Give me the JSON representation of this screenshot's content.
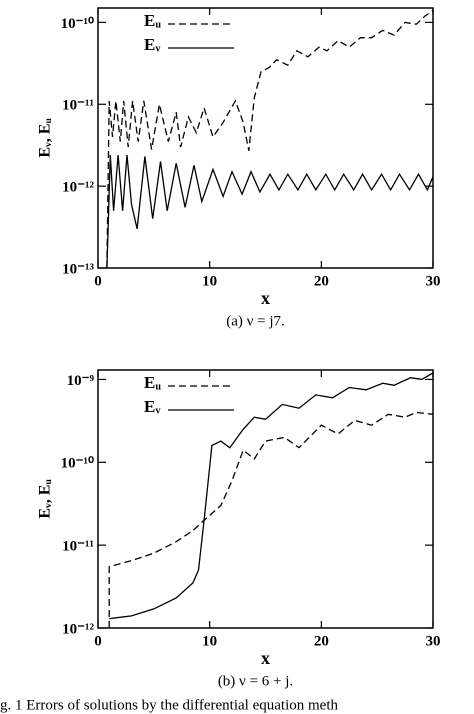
{
  "chart_data": [
    {
      "type": "line",
      "xlabel": "x",
      "ylabel": "Eᵥ, Eᵤ",
      "caption": "(a) ν = j7.",
      "log_y": true,
      "legend": "upper left",
      "xlim": [
        0,
        30
      ],
      "xticks": [
        0,
        10,
        20,
        30
      ],
      "ylim": [
        1e-13,
        1.5e-10
      ],
      "yticks": [
        {
          "value": 1e-13,
          "label": "10⁻¹³"
        },
        {
          "value": 1e-12,
          "label": "10⁻¹²"
        },
        {
          "value": 1e-11,
          "label": "10⁻¹¹"
        },
        {
          "value": 1e-10,
          "label": "10⁻¹⁰"
        }
      ],
      "series": [
        {
          "name": "Eᵤ",
          "color": "#000000",
          "style": "dashed",
          "x": [
            0.8,
            1.0,
            1.3,
            1.6,
            2.0,
            2.3,
            2.7,
            3.1,
            3.6,
            4.1,
            4.8,
            5.5,
            6.3,
            7.0,
            7.4,
            8.1,
            8.8,
            9.5,
            10.3,
            11.2,
            12.3,
            13.0,
            13.5,
            14.0,
            14.6,
            15.3,
            16.0,
            17.0,
            17.8,
            18.8,
            19.8,
            20.5,
            21.5,
            22.5,
            23.5,
            24.5,
            25.5,
            26.5,
            27.5,
            28.5,
            29.3,
            30.0
          ],
          "values": [
            1e-13,
            1.1e-11,
            4e-12,
            1.1e-11,
            3.5e-12,
            1.1e-11,
            3e-12,
            1.1e-11,
            3.5e-12,
            1.1e-11,
            2.8e-12,
            1e-11,
            3.5e-12,
            8e-12,
            3e-12,
            7e-12,
            4.5e-12,
            9e-12,
            4e-12,
            6e-12,
            1.1e-11,
            6e-12,
            2.7e-12,
            1.2e-11,
            2.5e-11,
            2.8e-11,
            3.5e-11,
            3e-11,
            4.5e-11,
            3.8e-11,
            5e-11,
            4.5e-11,
            6e-11,
            5e-11,
            6.5e-11,
            6.5e-11,
            8e-11,
            7e-11,
            1e-10,
            9.5e-11,
            1.2e-10,
            1.4e-10
          ]
        },
        {
          "name": "Eᵥ",
          "color": "#000000",
          "style": "solid",
          "x": [
            0.8,
            1.1,
            1.4,
            1.8,
            2.2,
            2.6,
            3.0,
            3.5,
            4.2,
            4.9,
            5.6,
            6.2,
            7.0,
            7.8,
            8.6,
            9.3,
            10.3,
            11.2,
            12.0,
            12.9,
            13.7,
            14.5,
            15.4,
            16.2,
            17.0,
            17.9,
            18.7,
            19.5,
            20.4,
            21.2,
            22.0,
            22.9,
            23.7,
            24.5,
            25.4,
            26.2,
            27.0,
            27.9,
            28.7,
            29.5,
            30.0
          ],
          "values": [
            1e-13,
            2.4e-12,
            5e-13,
            2.4e-12,
            5e-13,
            2.4e-12,
            6e-13,
            3e-13,
            2.3e-12,
            4e-13,
            2e-12,
            5e-13,
            1.9e-12,
            5.5e-13,
            1.8e-12,
            6.5e-13,
            1.6e-12,
            7.5e-13,
            1.5e-12,
            8e-13,
            1.5e-12,
            8.5e-13,
            1.4e-12,
            9e-13,
            1.4e-12,
            9e-13,
            1.4e-12,
            9e-13,
            1.4e-12,
            9e-13,
            1.4e-12,
            9e-13,
            1.4e-12,
            9e-13,
            1.4e-12,
            9e-13,
            1.4e-12,
            9e-13,
            1.4e-12,
            9e-13,
            1.3e-12
          ]
        }
      ]
    },
    {
      "type": "line",
      "xlabel": "x",
      "ylabel": "Eᵥ, Eᵤ",
      "caption": "(b) ν = 6 + j.",
      "log_y": true,
      "legend": "upper left",
      "xlim": [
        0,
        30
      ],
      "xticks": [
        0,
        10,
        20,
        30
      ],
      "ylim": [
        1e-12,
        1.3e-09
      ],
      "yticks": [
        {
          "value": 1e-12,
          "label": "10⁻¹²"
        },
        {
          "value": 1e-11,
          "label": "10⁻¹¹"
        },
        {
          "value": 1e-10,
          "label": "10⁻¹⁰"
        },
        {
          "value": 1e-09,
          "label": "10⁻⁹"
        }
      ],
      "series": [
        {
          "name": "Eᵤ",
          "color": "#000000",
          "style": "dashed",
          "x": [
            1.0,
            1.0,
            3.0,
            5.0,
            7.0,
            8.5,
            9.5,
            11.0,
            12.0,
            13.0,
            14.0,
            15.0,
            16.7,
            18.0,
            20.0,
            21.5,
            23.0,
            24.5,
            26.0,
            27.5,
            28.5,
            30.0
          ],
          "values": [
            1e-12,
            5.5e-12,
            6.5e-12,
            8e-12,
            1.1e-11,
            1.5e-11,
            2e-11,
            3e-11,
            6e-11,
            1.4e-10,
            1.1e-10,
            1.8e-10,
            2e-10,
            1.5e-10,
            2.8e-10,
            2.2e-10,
            3.2e-10,
            2.8e-10,
            3.8e-10,
            3.5e-10,
            4e-10,
            3.8e-10
          ]
        },
        {
          "name": "Eᵥ",
          "color": "#000000",
          "style": "solid",
          "x": [
            1.0,
            3.0,
            5.0,
            7.0,
            8.5,
            9.0,
            9.5,
            10.2,
            11.0,
            11.8,
            13.0,
            14.0,
            15.0,
            16.5,
            18.0,
            19.5,
            21.0,
            22.5,
            24.0,
            25.5,
            26.5,
            28.0,
            29.0,
            30.0
          ],
          "values": [
            1.3e-12,
            1.4e-12,
            1.7e-12,
            2.3e-12,
            3.5e-12,
            5e-12,
            2e-11,
            1.6e-10,
            1.8e-10,
            1.5e-10,
            2.5e-10,
            3.5e-10,
            3.3e-10,
            5e-10,
            4.5e-10,
            6.5e-10,
            6e-10,
            8e-10,
            7.5e-10,
            9e-10,
            8.5e-10,
            1.05e-09,
            1e-09,
            1.2e-09
          ]
        }
      ]
    }
  ],
  "figure_caption": "g. 1    Errors of solutions by the differential equation meth"
}
